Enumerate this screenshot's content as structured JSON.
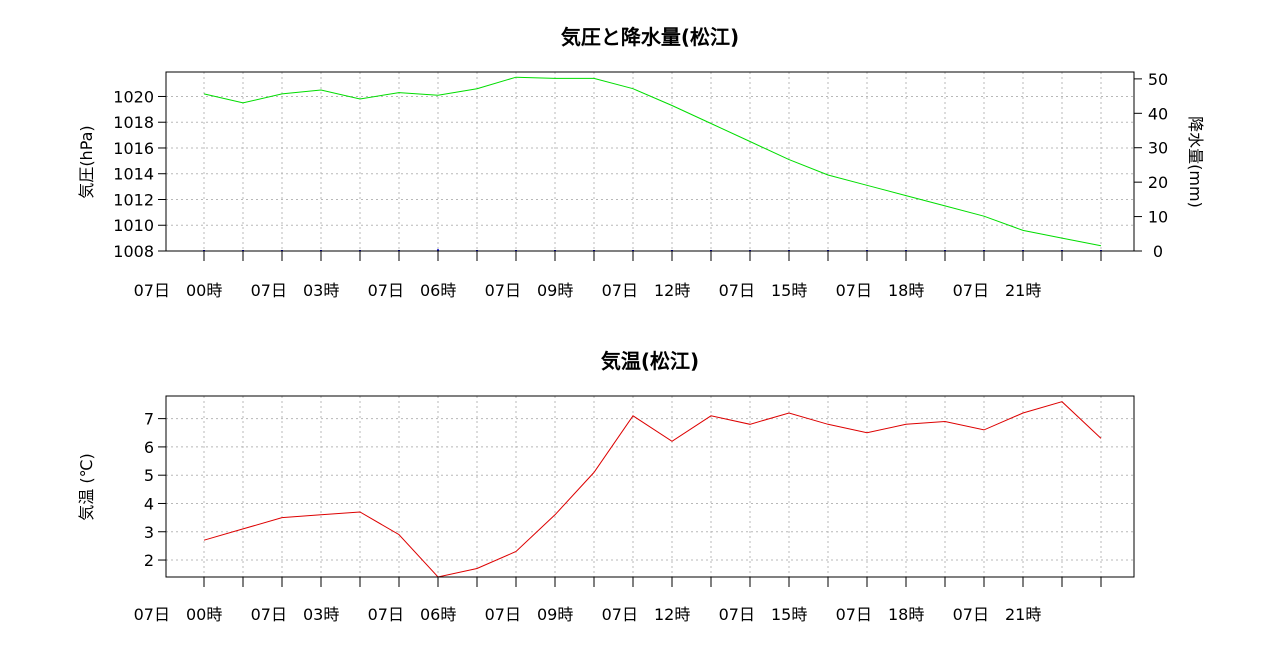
{
  "chart_data": [
    {
      "type": "line",
      "title": "気圧と降水量(松江)",
      "ylabel": "気圧(hPa)",
      "y2label": "降水量(mm)",
      "ylim": [
        1008,
        1021.9
      ],
      "y2lim": [
        0,
        52
      ],
      "yticks": [
        1008,
        1010,
        1012,
        1014,
        1016,
        1018,
        1020
      ],
      "y2ticks": [
        0,
        10,
        20,
        30,
        40,
        50
      ],
      "xtick_labels": [
        "07日　00時",
        "07日　03時",
        "07日　06時",
        "07日　09時",
        "07日　12時",
        "07日　15時",
        "07日　18時",
        "07日　21時"
      ],
      "grid": true,
      "series": [
        {
          "axis": "left",
          "color": "#00dd00",
          "values": [
            1020.2,
            1019.5,
            1020.2,
            1020.5,
            1019.8,
            1020.3,
            1020.1,
            1020.6,
            1021.5,
            1021.4,
            1021.4,
            1020.6,
            1019.3,
            1017.9,
            1016.5,
            1015.1,
            1013.9,
            1013.1,
            1012.3,
            1011.5,
            1010.7,
            1009.6,
            1009.0,
            1008.4
          ]
        },
        {
          "axis": "right",
          "type": "bar",
          "color": "#0000cc",
          "values": [
            0,
            0,
            0,
            0,
            0,
            0,
            0.5,
            0,
            0,
            0,
            0,
            0,
            0,
            0,
            0,
            0,
            0,
            0,
            0,
            0,
            0,
            0,
            0,
            0
          ]
        }
      ]
    },
    {
      "type": "line",
      "title": "気温(松江)",
      "ylabel": "気温 (℃)",
      "ylim": [
        1.4,
        7.8
      ],
      "yticks": [
        2,
        3,
        4,
        5,
        6,
        7
      ],
      "xtick_labels": [
        "07日　00時",
        "07日　03時",
        "07日　06時",
        "07日　09時",
        "07日　12時",
        "07日　15時",
        "07日　18時",
        "07日　21時"
      ],
      "grid": true,
      "series": [
        {
          "axis": "left",
          "color": "#dd0000",
          "values": [
            2.7,
            3.1,
            3.5,
            3.6,
            3.7,
            2.9,
            1.4,
            1.7,
            2.3,
            3.6,
            5.1,
            7.1,
            6.2,
            7.1,
            6.8,
            7.2,
            6.8,
            6.5,
            6.8,
            6.9,
            6.6,
            7.2,
            7.6,
            6.3
          ]
        }
      ]
    }
  ]
}
